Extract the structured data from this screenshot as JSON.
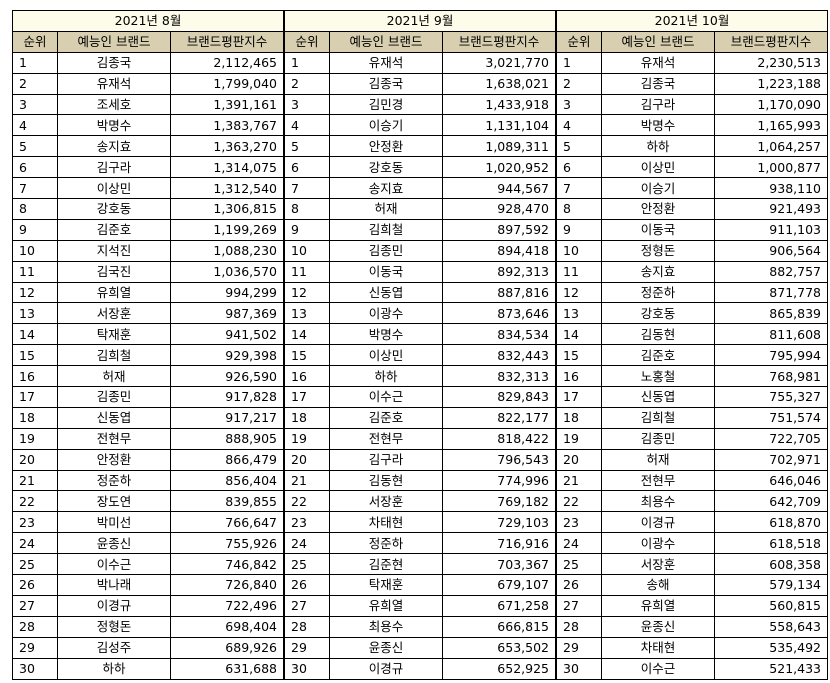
{
  "headers": {
    "rank": "순위",
    "name": "예능인 브랜드",
    "score": "브랜드평판지수"
  },
  "months": [
    {
      "title": "2021년 8월",
      "rows": [
        [
          "1",
          "김종국",
          "2,112,465"
        ],
        [
          "2",
          "유재석",
          "1,799,040"
        ],
        [
          "3",
          "조세호",
          "1,391,161"
        ],
        [
          "4",
          "박명수",
          "1,383,767"
        ],
        [
          "5",
          "송지효",
          "1,363,270"
        ],
        [
          "6",
          "김구라",
          "1,314,075"
        ],
        [
          "7",
          "이상민",
          "1,312,540"
        ],
        [
          "8",
          "강호동",
          "1,306,815"
        ],
        [
          "9",
          "김준호",
          "1,199,269"
        ],
        [
          "10",
          "지석진",
          "1,088,230"
        ],
        [
          "11",
          "김국진",
          "1,036,570"
        ],
        [
          "12",
          "유희열",
          "994,299"
        ],
        [
          "13",
          "서장훈",
          "987,369"
        ],
        [
          "14",
          "탁재훈",
          "941,502"
        ],
        [
          "15",
          "김희철",
          "929,398"
        ],
        [
          "16",
          "허재",
          "926,590"
        ],
        [
          "17",
          "김종민",
          "917,828"
        ],
        [
          "18",
          "신동엽",
          "917,217"
        ],
        [
          "19",
          "전현무",
          "888,905"
        ],
        [
          "20",
          "안정환",
          "866,479"
        ],
        [
          "21",
          "정준하",
          "856,404"
        ],
        [
          "22",
          "장도연",
          "839,855"
        ],
        [
          "23",
          "박미선",
          "766,647"
        ],
        [
          "24",
          "윤종신",
          "755,926"
        ],
        [
          "25",
          "이수근",
          "746,842"
        ],
        [
          "26",
          "박나래",
          "726,840"
        ],
        [
          "27",
          "이경규",
          "722,496"
        ],
        [
          "28",
          "정형돈",
          "698,404"
        ],
        [
          "29",
          "김성주",
          "689,926"
        ],
        [
          "30",
          "하하",
          "631,688"
        ]
      ]
    },
    {
      "title": "2021년 9월",
      "rows": [
        [
          "1",
          "유재석",
          "3,021,770"
        ],
        [
          "2",
          "김종국",
          "1,638,021"
        ],
        [
          "3",
          "김민경",
          "1,433,918"
        ],
        [
          "4",
          "이승기",
          "1,131,104"
        ],
        [
          "5",
          "안정환",
          "1,089,311"
        ],
        [
          "6",
          "강호동",
          "1,020,952"
        ],
        [
          "7",
          "송지효",
          "944,567"
        ],
        [
          "8",
          "허재",
          "928,470"
        ],
        [
          "9",
          "김희철",
          "897,592"
        ],
        [
          "10",
          "김종민",
          "894,418"
        ],
        [
          "11",
          "이동국",
          "892,313"
        ],
        [
          "12",
          "신동엽",
          "887,816"
        ],
        [
          "13",
          "이광수",
          "873,646"
        ],
        [
          "14",
          "박명수",
          "834,534"
        ],
        [
          "15",
          "이상민",
          "832,443"
        ],
        [
          "16",
          "하하",
          "832,313"
        ],
        [
          "17",
          "이수근",
          "829,843"
        ],
        [
          "18",
          "김준호",
          "822,177"
        ],
        [
          "19",
          "전현무",
          "818,422"
        ],
        [
          "20",
          "김구라",
          "796,543"
        ],
        [
          "21",
          "김동현",
          "774,996"
        ],
        [
          "22",
          "서장훈",
          "769,182"
        ],
        [
          "23",
          "차태현",
          "729,103"
        ],
        [
          "24",
          "정준하",
          "716,916"
        ],
        [
          "25",
          "김준현",
          "703,367"
        ],
        [
          "26",
          "탁재훈",
          "679,107"
        ],
        [
          "27",
          "유희열",
          "671,258"
        ],
        [
          "28",
          "최용수",
          "666,815"
        ],
        [
          "29",
          "윤종신",
          "653,502"
        ],
        [
          "30",
          "이경규",
          "652,925"
        ]
      ]
    },
    {
      "title": "2021년 10월",
      "rows": [
        [
          "1",
          "유재석",
          "2,230,513"
        ],
        [
          "2",
          "김종국",
          "1,223,188"
        ],
        [
          "3",
          "김구라",
          "1,170,090"
        ],
        [
          "4",
          "박명수",
          "1,165,993"
        ],
        [
          "5",
          "하하",
          "1,064,257"
        ],
        [
          "6",
          "이상민",
          "1,000,877"
        ],
        [
          "7",
          "이승기",
          "938,110"
        ],
        [
          "8",
          "안정환",
          "921,493"
        ],
        [
          "9",
          "이동국",
          "911,103"
        ],
        [
          "10",
          "정형돈",
          "906,564"
        ],
        [
          "11",
          "송지효",
          "882,757"
        ],
        [
          "12",
          "정준하",
          "871,778"
        ],
        [
          "13",
          "강호동",
          "865,839"
        ],
        [
          "14",
          "김동현",
          "811,608"
        ],
        [
          "15",
          "김준호",
          "795,994"
        ],
        [
          "16",
          "노홍철",
          "768,981"
        ],
        [
          "17",
          "신동엽",
          "755,327"
        ],
        [
          "18",
          "김희철",
          "751,574"
        ],
        [
          "19",
          "김종민",
          "722,705"
        ],
        [
          "20",
          "허재",
          "702,971"
        ],
        [
          "21",
          "전현무",
          "646,046"
        ],
        [
          "22",
          "최용수",
          "642,709"
        ],
        [
          "23",
          "이경규",
          "618,870"
        ],
        [
          "24",
          "이광수",
          "618,518"
        ],
        [
          "25",
          "서장훈",
          "608,358"
        ],
        [
          "26",
          "송해",
          "579,134"
        ],
        [
          "27",
          "유희열",
          "560,815"
        ],
        [
          "28",
          "윤종신",
          "558,643"
        ],
        [
          "29",
          "차태현",
          "535,492"
        ],
        [
          "30",
          "이수근",
          "521,433"
        ]
      ]
    }
  ]
}
